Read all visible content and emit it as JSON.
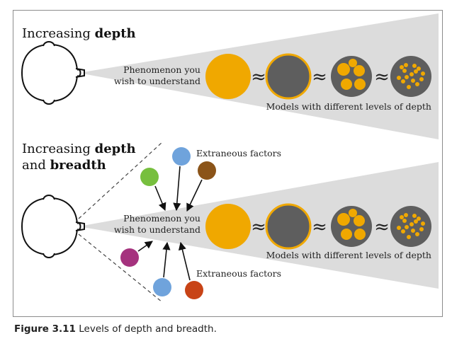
{
  "panel_top": {
    "title_prefix": "Increasing ",
    "title_bold": "depth",
    "phenomenon_line1": "Phenomenon you",
    "phenomenon_line2": "wish to understand",
    "models_label": "Models with different levels of depth",
    "approx_symbol": "≈"
  },
  "panel_bottom": {
    "title_line1_prefix": "Increasing ",
    "title_line1_bold": "depth",
    "title_line2_prefix": "and ",
    "title_line2_bold": "breadth",
    "phenomenon_line1": "Phenomenon you",
    "phenomenon_line2": "wish to understand",
    "models_label": "Models with different levels of depth",
    "extraneous_top": "Extraneous factors",
    "extraneous_bottom": "Extraneous factors",
    "approx_symbol": "≈"
  },
  "caption": {
    "label": "Figure 3.11",
    "text": " Levels of depth and breadth."
  },
  "colors": {
    "cone_fill": "#dcdcdc",
    "phenomenon": "#f0a800",
    "model_dark": "#5e5e5e",
    "model_dots": "#f0a800",
    "factor_blue": "#6fa3dc",
    "factor_green": "#77bf3e",
    "factor_brown": "#8b5419",
    "factor_magenta": "#a5327e",
    "factor_red": "#c84316"
  }
}
